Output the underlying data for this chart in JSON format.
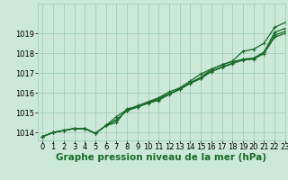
{
  "background_color": "#cce8d8",
  "plot_bg_color": "#cce8d8",
  "grid_color": "#99ccb0",
  "line_color": "#1a6b2a",
  "xlabel": "Graphe pression niveau de la mer (hPa)",
  "xlabel_fontsize": 7.5,
  "tick_fontsize": 6.0,
  "xlim": [
    -0.5,
    23
  ],
  "ylim": [
    1013.6,
    1020.5
  ],
  "yticks": [
    1014,
    1015,
    1016,
    1017,
    1018,
    1019
  ],
  "xticks": [
    0,
    1,
    2,
    3,
    4,
    5,
    6,
    7,
    8,
    9,
    10,
    11,
    12,
    13,
    14,
    15,
    16,
    17,
    18,
    19,
    20,
    21,
    22,
    23
  ],
  "series": [
    [
      1013.8,
      1014.0,
      1014.1,
      1014.2,
      1014.2,
      1013.95,
      1014.35,
      1014.8,
      1015.15,
      1015.35,
      1015.55,
      1015.75,
      1016.05,
      1016.25,
      1016.6,
      1016.95,
      1017.2,
      1017.4,
      1017.6,
      1018.1,
      1018.2,
      1018.5,
      1019.3,
      1019.55
    ],
    [
      1013.8,
      1014.0,
      1014.1,
      1014.2,
      1014.2,
      1013.95,
      1014.35,
      1014.5,
      1015.2,
      1015.28,
      1015.5,
      1015.72,
      1015.95,
      1016.18,
      1016.52,
      1016.78,
      1017.18,
      1017.42,
      1017.58,
      1017.68,
      1017.72,
      1018.05,
      1019.05,
      1019.25
    ],
    [
      1013.8,
      1014.0,
      1014.1,
      1014.2,
      1014.2,
      1013.95,
      1014.35,
      1014.62,
      1015.12,
      1015.3,
      1015.5,
      1015.65,
      1015.95,
      1016.2,
      1016.5,
      1016.75,
      1017.1,
      1017.3,
      1017.5,
      1017.7,
      1017.75,
      1018.05,
      1018.9,
      1019.1
    ],
    [
      1013.8,
      1014.0,
      1014.1,
      1014.2,
      1014.2,
      1013.95,
      1014.35,
      1014.65,
      1015.1,
      1015.28,
      1015.48,
      1015.62,
      1015.92,
      1016.17,
      1016.47,
      1016.72,
      1017.07,
      1017.27,
      1017.47,
      1017.65,
      1017.7,
      1017.98,
      1018.8,
      1019.0
    ]
  ],
  "marker": "+",
  "markersize": 3.5,
  "linewidth": 0.9
}
